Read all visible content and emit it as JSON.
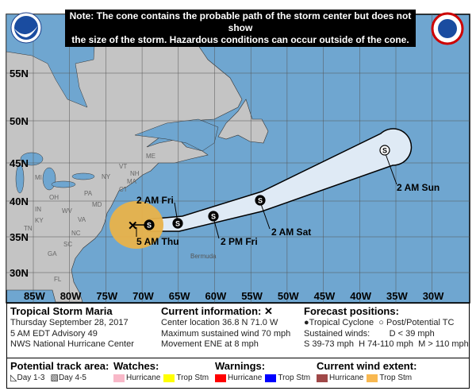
{
  "note": {
    "line1": "Note: The cone contains the probable path of the storm center but does not show",
    "line2": "the size of the storm. Hazardous conditions can occur outside of the cone."
  },
  "logos": {
    "left": "NOAA",
    "right": "NATIONAL WEATHER SERVICE"
  },
  "map": {
    "lat_labels": [
      "55N",
      "50N",
      "45N",
      "40N",
      "35N",
      "30N"
    ],
    "lon_labels": [
      "85W",
      "80W",
      "75W",
      "70W",
      "65W",
      "60W",
      "55W",
      "50W",
      "45W",
      "40W",
      "35W",
      "30W"
    ],
    "state_labels": [
      "ME",
      "VT",
      "NH",
      "NY",
      "MA",
      "CT",
      "PA",
      "OH",
      "IN",
      "MI",
      "WV",
      "VA",
      "KY",
      "TN",
      "NC",
      "SC",
      "GA",
      "FL",
      "MD"
    ],
    "place_labels": {
      "bermuda": "Bermuda"
    },
    "track_labels": {
      "current": "5 AM Thu",
      "fri_am": "2 AM Fri",
      "fri_pm": "2 PM Fri",
      "sat_am": "2 AM Sat",
      "sun_am": "2 AM Sun"
    },
    "point_symbol": "S",
    "colors": {
      "ocean": "#6fa6d0",
      "land": "#c4c4c4",
      "cone": "#dfeaf5",
      "ts_wind": "#e8b24a"
    }
  },
  "info": {
    "title": "Tropical Storm Maria",
    "date": "Thursday September 28, 2017",
    "advisory": "5 AM EDT Advisory 49",
    "center": "NWS National Hurricane Center",
    "current_heading": "Current information: ✕",
    "location": "Center location 36.8 N 71.0 W",
    "wind": "Maximum sustained wind 70 mph",
    "movement": "Movement ENE at 8 mph",
    "forecast_heading": "Forecast positions:",
    "tc": "Tropical Cyclone",
    "ptc": "Post/Potential TC",
    "sustained": "Sustained winds:",
    "d": "D < 39 mph",
    "shm": "S 39-73 mph  H 74-110 mph  M > 110 mph"
  },
  "legend": {
    "track_heading": "Potential track area:",
    "day13": "Day 1-3",
    "day45": "Day 4-5",
    "watches_heading": "Watches:",
    "watch_h": "Hurricane",
    "watch_ts": "Trop Stm",
    "warnings_heading": "Warnings:",
    "warn_h": "Hurricane",
    "warn_ts": "Trop Stm",
    "wind_heading": "Current wind extent:",
    "wind_h": "Hurricane",
    "wind_ts": "Trop Stm",
    "colors": {
      "watch_h": "#f8b8c8",
      "watch_ts": "#ffff00",
      "warn_h": "#ff0000",
      "warn_ts": "#0000ff",
      "wind_h": "#a04848",
      "wind_ts": "#f8b850"
    }
  }
}
